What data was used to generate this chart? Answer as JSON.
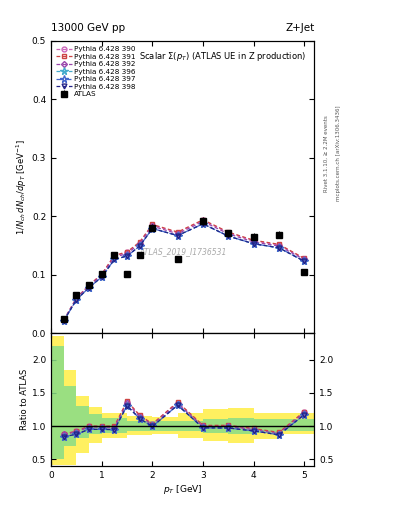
{
  "title_top": "13000 GeV pp",
  "title_right": "Z+Jet",
  "main_title": "Scalar $\\Sigma(p_T)$ (ATLAS UE in Z production)",
  "watermark": "ATLAS_2019_I1736531",
  "right_label": "Rivet 3.1.10, ≥ 2.2M events",
  "right_label2": "mcplots.cern.ch [arXiv:1306.3436]",
  "ylabel_main": "$1/N_{ch}\\,dN_{ch}/dp_T$ [GeV$^{-1}$]",
  "ylabel_ratio": "Ratio to ATLAS",
  "xlabel": "$p_T$ [GeV]",
  "xlim": [
    0,
    5.2
  ],
  "ylim_main": [
    0.0,
    0.5
  ],
  "ylim_ratio": [
    0.4,
    2.4
  ],
  "yticks_main": [
    0.0,
    0.1,
    0.2,
    0.3,
    0.4,
    0.5
  ],
  "yticks_ratio": [
    0.5,
    1.0,
    1.5,
    2.0
  ],
  "atlas_x": [
    0.25,
    0.5,
    0.75,
    1.0,
    1.25,
    1.5,
    1.75,
    2.0,
    2.5,
    3.0,
    3.5,
    4.0,
    4.5,
    5.0
  ],
  "atlas_y": [
    0.025,
    0.065,
    0.082,
    0.101,
    0.133,
    0.101,
    0.134,
    0.18,
    0.127,
    0.192,
    0.171,
    0.165,
    0.168,
    0.105
  ],
  "atlas_yerr": [
    0.003,
    0.004,
    0.004,
    0.004,
    0.005,
    0.004,
    0.005,
    0.006,
    0.005,
    0.007,
    0.006,
    0.006,
    0.006,
    0.004
  ],
  "series": [
    {
      "label": "Pythia 6.428 390",
      "color": "#cc66bb",
      "marker": "o",
      "ls": "-.",
      "x": [
        0.25,
        0.5,
        0.75,
        1.0,
        1.25,
        1.5,
        1.75,
        2.0,
        2.5,
        3.0,
        3.5,
        4.0,
        4.5,
        5.0
      ],
      "y": [
        0.022,
        0.06,
        0.082,
        0.1,
        0.132,
        0.138,
        0.155,
        0.185,
        0.172,
        0.193,
        0.172,
        0.158,
        0.151,
        0.127
      ]
    },
    {
      "label": "Pythia 6.428 391",
      "color": "#cc4444",
      "marker": "s",
      "ls": "-.",
      "x": [
        0.25,
        0.5,
        0.75,
        1.0,
        1.25,
        1.5,
        1.75,
        2.0,
        2.5,
        3.0,
        3.5,
        4.0,
        4.5,
        5.0
      ],
      "y": [
        0.022,
        0.06,
        0.082,
        0.101,
        0.133,
        0.139,
        0.156,
        0.186,
        0.173,
        0.194,
        0.173,
        0.159,
        0.152,
        0.128
      ]
    },
    {
      "label": "Pythia 6.428 392",
      "color": "#9944aa",
      "marker": "D",
      "ls": "-.",
      "x": [
        0.25,
        0.5,
        0.75,
        1.0,
        1.25,
        1.5,
        1.75,
        2.0,
        2.5,
        3.0,
        3.5,
        4.0,
        4.5,
        5.0
      ],
      "y": [
        0.022,
        0.059,
        0.081,
        0.099,
        0.13,
        0.136,
        0.153,
        0.183,
        0.17,
        0.191,
        0.17,
        0.156,
        0.149,
        0.126
      ]
    },
    {
      "label": "Pythia 6.428 396",
      "color": "#44aacc",
      "marker": "*",
      "ls": "-.",
      "x": [
        0.25,
        0.5,
        0.75,
        1.0,
        1.25,
        1.5,
        1.75,
        2.0,
        2.5,
        3.0,
        3.5,
        4.0,
        4.5,
        5.0
      ],
      "y": [
        0.021,
        0.057,
        0.078,
        0.096,
        0.126,
        0.132,
        0.149,
        0.179,
        0.167,
        0.187,
        0.166,
        0.153,
        0.146,
        0.123
      ]
    },
    {
      "label": "Pythia 6.428 397",
      "color": "#4466cc",
      "marker": "*",
      "ls": "--",
      "x": [
        0.25,
        0.5,
        0.75,
        1.0,
        1.25,
        1.5,
        1.75,
        2.0,
        2.5,
        3.0,
        3.5,
        4.0,
        4.5,
        5.0
      ],
      "y": [
        0.021,
        0.057,
        0.078,
        0.096,
        0.126,
        0.132,
        0.149,
        0.179,
        0.167,
        0.187,
        0.166,
        0.153,
        0.146,
        0.123
      ]
    },
    {
      "label": "Pythia 6.428 398",
      "color": "#222288",
      "marker": "v",
      "ls": "-.",
      "x": [
        0.25,
        0.5,
        0.75,
        1.0,
        1.25,
        1.5,
        1.75,
        2.0,
        2.5,
        3.0,
        3.5,
        4.0,
        4.5,
        5.0
      ],
      "y": [
        0.021,
        0.057,
        0.078,
        0.096,
        0.126,
        0.132,
        0.149,
        0.179,
        0.167,
        0.187,
        0.166,
        0.153,
        0.146,
        0.123
      ]
    }
  ],
  "band_bins": [
    0.0,
    0.25,
    0.5,
    0.75,
    1.0,
    1.5,
    2.0,
    2.5,
    3.0,
    3.5,
    4.0,
    4.5,
    5.2
  ],
  "green_lo": [
    0.5,
    0.7,
    0.82,
    0.88,
    0.9,
    0.92,
    0.93,
    0.92,
    0.9,
    0.88,
    0.9,
    0.92
  ],
  "green_hi": [
    2.2,
    1.6,
    1.3,
    1.18,
    1.12,
    1.08,
    1.07,
    1.08,
    1.1,
    1.12,
    1.1,
    1.1
  ],
  "yellow_lo": [
    0.42,
    0.42,
    0.6,
    0.75,
    0.82,
    0.86,
    0.88,
    0.82,
    0.78,
    0.74,
    0.8,
    0.88
  ],
  "yellow_hi": [
    2.35,
    1.85,
    1.45,
    1.28,
    1.2,
    1.15,
    1.13,
    1.2,
    1.25,
    1.27,
    1.2,
    1.2
  ]
}
